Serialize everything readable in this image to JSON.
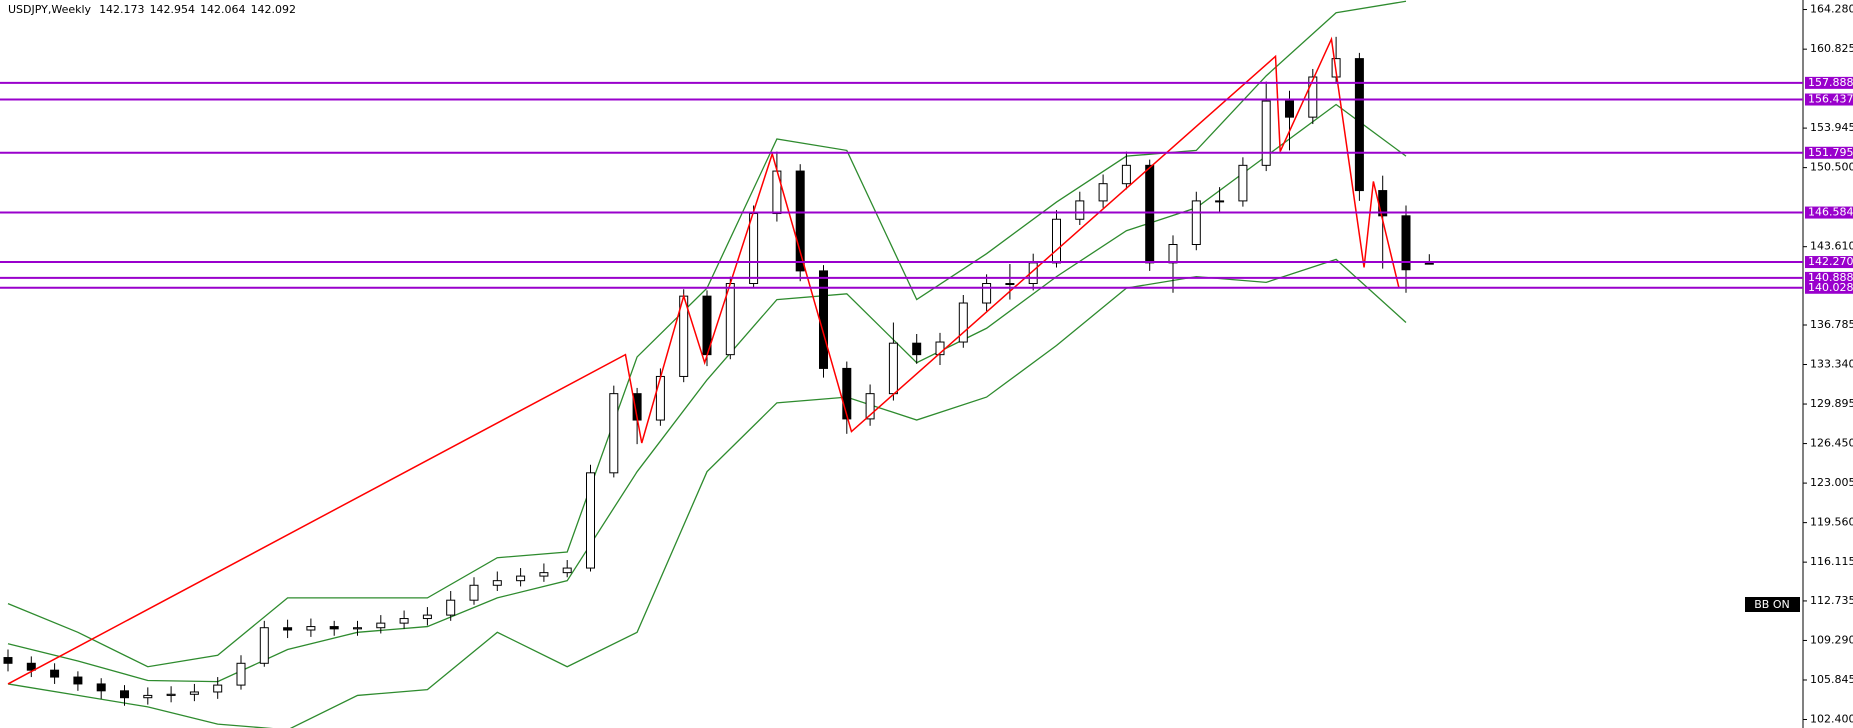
{
  "chart_data": {
    "type": "candlestick",
    "title": "USDJPY,Weekly",
    "ylim": [
      101.66,
      165.11
    ],
    "yticks": [
      {
        "value": 164.28,
        "label": "164.280"
      },
      160.825,
      153.945,
      {
        "value": 150.5,
        "label": "150.500"
      },
      {
        "value": 143.61,
        "label": "143.610"
      },
      136.785,
      {
        "value": 133.34,
        "label": "133.340"
      },
      129.895,
      {
        "value": 126.45,
        "label": "126.450"
      },
      123.005,
      {
        "value": 119.56,
        "label": "119.560"
      },
      116.115,
      112.735,
      {
        "value": 109.29,
        "label": "109.290"
      },
      105.845,
      {
        "value": 102.4,
        "label": "102.400"
      }
    ],
    "candles": {
      "color_up": "#ffffff",
      "color_down": "#000000",
      "open": [
        107.8,
        107.3,
        106.7,
        106.1,
        105.5,
        104.9,
        104.3,
        104.5,
        104.6,
        104.8,
        105.4,
        107.3,
        110.4,
        110.2,
        110.5,
        110.3,
        110.4,
        110.8,
        111.2,
        111.5,
        112.8,
        114.1,
        114.5,
        114.9,
        115.2,
        115.6,
        123.9,
        130.8,
        128.5,
        132.3,
        139.3,
        134.2,
        140.4,
        146.5,
        150.2,
        141.5,
        133.0,
        128.6,
        130.8,
        135.2,
        134.2,
        135.3,
        138.7,
        140.4,
        140.4,
        142.2,
        146.0,
        147.6,
        149.1,
        150.7,
        142.2,
        143.8,
        147.6,
        147.6,
        150.7,
        156.3,
        154.9,
        158.4,
        160.0,
        148.5,
        146.3,
        142.173
      ],
      "high": [
        108.5,
        107.9,
        107.3,
        106.6,
        106.0,
        105.4,
        105.2,
        105.3,
        105.5,
        106.1,
        108.0,
        111.0,
        111.1,
        111.2,
        111.0,
        111.0,
        111.5,
        111.9,
        112.2,
        113.6,
        114.8,
        115.3,
        115.6,
        116.0,
        116.3,
        124.6,
        131.5,
        131.3,
        133.0,
        139.9,
        139.8,
        141.0,
        147.2,
        151.9,
        150.8,
        142.0,
        133.6,
        131.6,
        137.0,
        136.0,
        136.1,
        139.4,
        141.2,
        142.1,
        143.0,
        146.8,
        148.4,
        149.9,
        151.9,
        151.2,
        144.6,
        148.4,
        148.8,
        151.4,
        158.0,
        157.2,
        159.1,
        161.9,
        160.5,
        149.8,
        147.2,
        142.954
      ],
      "low": [
        106.6,
        106.1,
        105.5,
        104.9,
        104.2,
        103.6,
        103.7,
        103.9,
        104.0,
        104.2,
        105.0,
        107.0,
        109.5,
        109.6,
        109.7,
        109.7,
        109.9,
        110.3,
        110.6,
        111.0,
        112.4,
        113.6,
        114.0,
        114.4,
        114.8,
        115.3,
        123.5,
        126.4,
        128.0,
        131.8,
        133.2,
        133.8,
        140.0,
        145.8,
        140.6,
        132.2,
        127.3,
        128.0,
        130.2,
        133.4,
        133.3,
        134.8,
        138.0,
        139.0,
        139.8,
        141.8,
        145.5,
        147.0,
        148.6,
        141.5,
        139.6,
        143.3,
        146.6,
        147.1,
        150.2,
        152.0,
        154.3,
        157.8,
        147.6,
        141.7,
        139.6,
        142.064
      ],
      "close": [
        107.3,
        106.7,
        106.1,
        105.5,
        104.9,
        104.3,
        104.5,
        104.6,
        104.8,
        105.4,
        107.3,
        110.4,
        110.2,
        110.5,
        110.3,
        110.4,
        110.8,
        111.2,
        111.5,
        112.8,
        114.1,
        114.5,
        114.9,
        115.2,
        115.6,
        123.9,
        130.8,
        128.5,
        132.3,
        139.3,
        134.2,
        140.4,
        146.5,
        150.2,
        141.5,
        133.0,
        128.6,
        130.8,
        135.2,
        134.2,
        135.3,
        138.7,
        140.4,
        140.4,
        142.2,
        146.0,
        147.6,
        149.1,
        150.7,
        142.2,
        143.8,
        147.6,
        147.6,
        150.7,
        156.3,
        154.9,
        158.4,
        160.0,
        148.5,
        146.3,
        141.6,
        142.092
      ]
    },
    "bands": {
      "color": "#2e8b2e",
      "x": [
        0,
        3,
        6,
        9,
        12,
        15,
        18,
        21,
        24,
        27,
        30,
        33,
        36,
        39,
        42,
        45,
        48,
        51,
        54,
        57,
        60
      ],
      "series": [
        {
          "values": [
            112.5,
            110.0,
            107.0,
            108.0,
            113.0,
            113.0,
            113.0,
            116.5,
            117.0,
            134.0,
            140.0,
            153.0,
            152.0,
            139.0,
            143.0,
            147.5,
            151.5,
            152.0,
            158.5,
            164.0,
            165.0
          ]
        },
        {
          "values": [
            109.0,
            107.5,
            105.8,
            105.7,
            108.5,
            110.0,
            110.5,
            113.0,
            114.5,
            124.0,
            132.0,
            139.0,
            139.5,
            133.5,
            136.5,
            141.0,
            145.0,
            147.0,
            151.5,
            156.0,
            151.5
          ]
        },
        {
          "values": [
            105.5,
            104.5,
            103.5,
            102.0,
            101.5,
            104.5,
            105.0,
            110.0,
            107.0,
            110.0,
            124.0,
            130.0,
            130.5,
            128.5,
            130.5,
            135.0,
            140.0,
            141.0,
            140.5,
            142.5,
            137.0
          ]
        }
      ]
    },
    "zigzag": {
      "color": "#ff0000",
      "x": [
        0,
        26.5,
        27.2,
        29,
        29.9,
        32.8,
        36.2,
        54.4,
        54.6,
        56.8,
        58.2,
        58.6,
        59.7
      ],
      "values": [
        105.5,
        134.2,
        126.5,
        139.3,
        133.5,
        151.7,
        127.5,
        160.2,
        151.9,
        161.7,
        141.8,
        149.3,
        140.0
      ]
    },
    "levels": {
      "color": "#9900cc",
      "values": [
        157.888,
        156.437,
        151.795,
        146.584,
        {
          "value": 142.27,
          "label": "142.270"
        },
        140.888,
        140.028
      ]
    },
    "indicator_label": "BB ON"
  }
}
